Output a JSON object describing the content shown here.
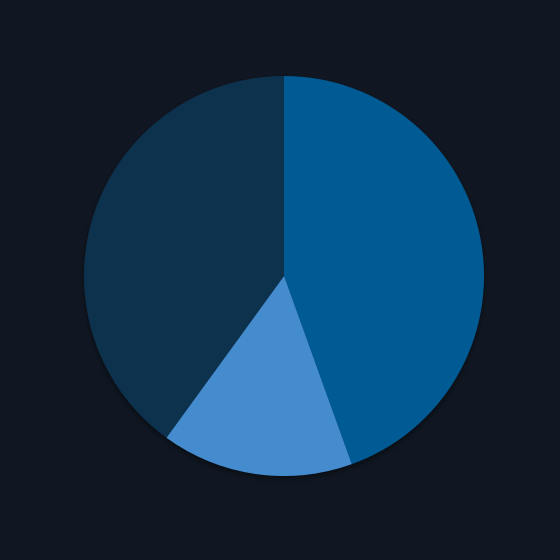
{
  "chart_data": {
    "type": "pie",
    "title": "",
    "start_angle_deg": 0,
    "direction": "clockwise",
    "slices": [
      {
        "value": 44.5,
        "color": "#005a93"
      },
      {
        "value": 15.5,
        "color": "#448ccf"
      },
      {
        "value": 40.0,
        "color": "#10314e"
      }
    ]
  },
  "colors": {
    "background": "#101722"
  }
}
